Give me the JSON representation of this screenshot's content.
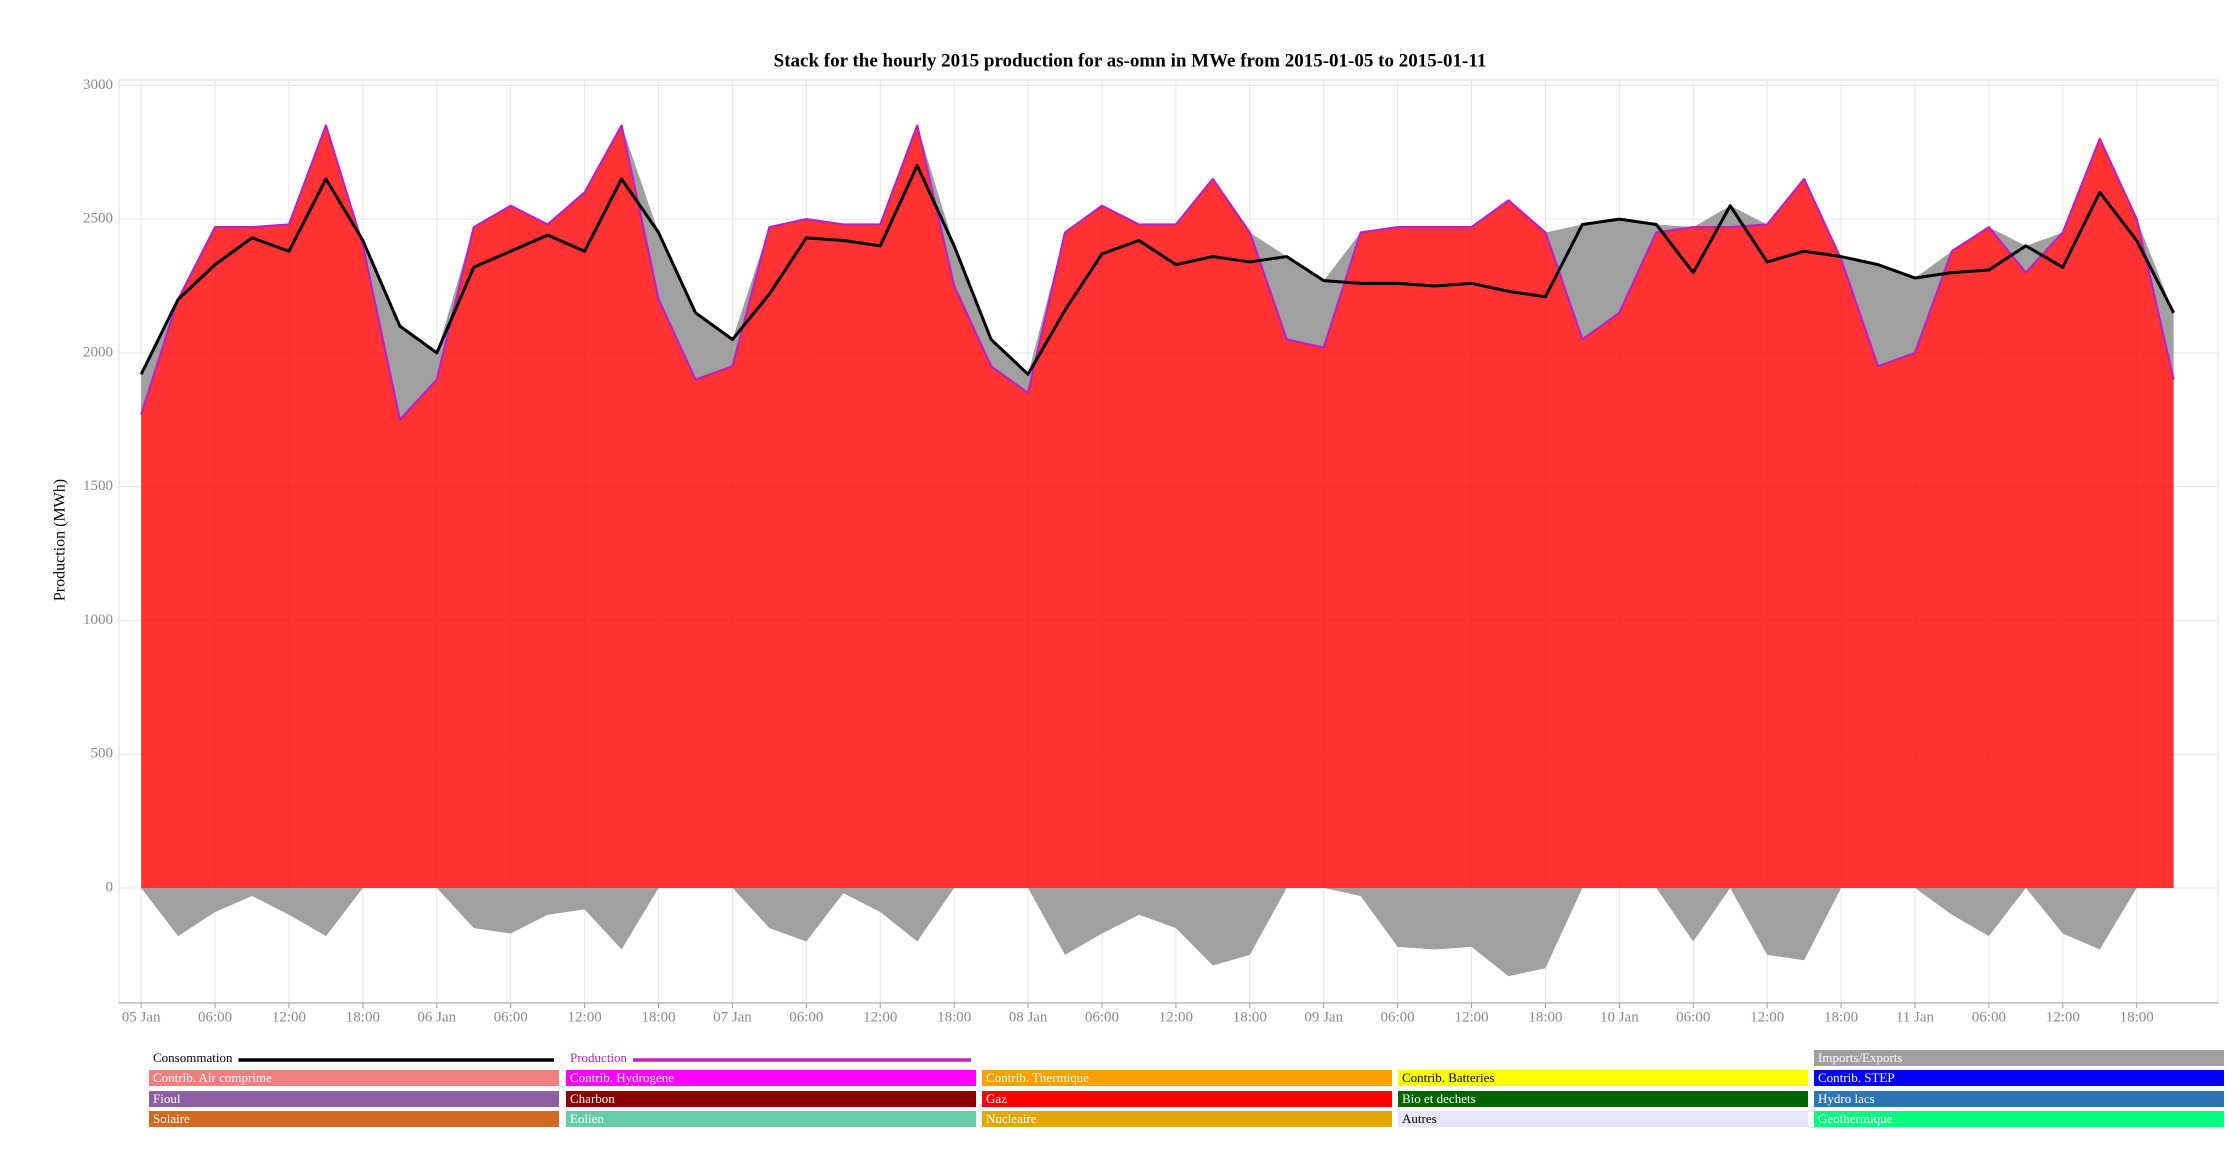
{
  "chart_data": {
    "type": "stacked-area",
    "title": "Stack for the hourly 2015 production for as-omn in MWe from 2015-01-05 to 2015-01-11",
    "y_label": "Production (MWh)",
    "x": [
      0,
      3,
      6,
      9,
      12,
      15,
      18,
      21,
      24,
      27,
      30,
      33,
      36,
      39,
      42,
      45,
      48,
      51,
      54,
      57,
      60,
      63,
      66,
      69,
      72,
      75,
      78,
      81,
      84,
      87,
      90,
      93,
      96,
      99,
      102,
      105,
      108,
      111,
      114,
      117,
      120,
      123,
      126,
      129,
      132,
      135,
      138,
      141,
      144,
      147,
      150,
      153,
      156,
      159,
      162,
      165
    ],
    "xlim": [
      -1.8,
      168.6
    ],
    "xticks": [
      {
        "value": 0,
        "label": "05 Jan"
      },
      {
        "value": 6,
        "label": "06:00"
      },
      {
        "value": 12,
        "label": "12:00"
      },
      {
        "value": 18,
        "label": "18:00"
      },
      {
        "value": 24,
        "label": "06 Jan"
      },
      {
        "value": 30,
        "label": "06:00"
      },
      {
        "value": 36,
        "label": "12:00"
      },
      {
        "value": 42,
        "label": "18:00"
      },
      {
        "value": 48,
        "label": "07 Jan"
      },
      {
        "value": 54,
        "label": "06:00"
      },
      {
        "value": 60,
        "label": "12:00"
      },
      {
        "value": 66,
        "label": "18:00"
      },
      {
        "value": 72,
        "label": "08 Jan"
      },
      {
        "value": 78,
        "label": "06:00"
      },
      {
        "value": 84,
        "label": "12:00"
      },
      {
        "value": 90,
        "label": "18:00"
      },
      {
        "value": 96,
        "label": "09 Jan"
      },
      {
        "value": 102,
        "label": "06:00"
      },
      {
        "value": 108,
        "label": "12:00"
      },
      {
        "value": 114,
        "label": "18:00"
      },
      {
        "value": 120,
        "label": "10 Jan"
      },
      {
        "value": 126,
        "label": "06:00"
      },
      {
        "value": 132,
        "label": "12:00"
      },
      {
        "value": 138,
        "label": "18:00"
      },
      {
        "value": 144,
        "label": "11 Jan"
      },
      {
        "value": 150,
        "label": "06:00"
      },
      {
        "value": 156,
        "label": "12:00"
      },
      {
        "value": 162,
        "label": "18:00"
      }
    ],
    "ylim": [
      -430,
      3020
    ],
    "yticks": [
      0,
      500,
      1000,
      1500,
      2000,
      2500,
      3000
    ],
    "grid": true,
    "series": [
      {
        "name": "Consommation",
        "kind": "line",
        "color": "#000000",
        "values": [
          1920,
          2200,
          2330,
          2430,
          2380,
          2650,
          2420,
          2100,
          2000,
          2320,
          2380,
          2440,
          2380,
          2650,
          2450,
          2150,
          2050,
          2220,
          2430,
          2420,
          2400,
          2700,
          2400,
          2050,
          1920,
          2160,
          2370,
          2420,
          2330,
          2360,
          2340,
          2360,
          2270,
          2260,
          2260,
          2250,
          2260,
          2230,
          2210,
          2480,
          2500,
          2480,
          2300,
          2550,
          2340,
          2380,
          2360,
          2330,
          2280,
          2300,
          2310,
          2400,
          2320,
          2600,
          2420,
          2150
        ]
      },
      {
        "name": "Production",
        "kind": "line",
        "color": "#c020c0",
        "values": [
          1770,
          2200,
          2470,
          2470,
          2480,
          2850,
          2400,
          1750,
          1900,
          2470,
          2550,
          2480,
          2600,
          2850,
          2200,
          1900,
          1950,
          2470,
          2500,
          2480,
          2480,
          2850,
          2250,
          1950,
          1850,
          2450,
          2550,
          2480,
          2480,
          2650,
          2450,
          2050,
          2020,
          2450,
          2470,
          2470,
          2470,
          2570,
          2450,
          2050,
          2150,
          2450,
          2470,
          2470,
          2480,
          2650,
          2350,
          1950,
          2000,
          2380,
          2470,
          2300,
          2450,
          2800,
          2500,
          1900
        ]
      },
      {
        "name": "Gaz",
        "kind": "area",
        "color": "#ff0000",
        "values": [
          1770,
          2200,
          2470,
          2470,
          2480,
          2850,
          2400,
          1750,
          1900,
          2470,
          2550,
          2480,
          2600,
          2850,
          2200,
          1900,
          1950,
          2470,
          2500,
          2480,
          2480,
          2850,
          2250,
          1950,
          1850,
          2450,
          2550,
          2480,
          2480,
          2650,
          2450,
          2050,
          2020,
          2450,
          2470,
          2470,
          2470,
          2570,
          2450,
          2050,
          2150,
          2450,
          2470,
          2470,
          2480,
          2650,
          2350,
          1950,
          2000,
          2380,
          2470,
          2300,
          2450,
          2800,
          2500,
          1900
        ]
      },
      {
        "name": "Imports/Exports",
        "kind": "area",
        "color": "#a0a0a0",
        "values": [
          150,
          -180,
          -90,
          -30,
          -100,
          -180,
          20,
          350,
          100,
          -150,
          -170,
          -100,
          -80,
          -230,
          250,
          250,
          100,
          -150,
          -200,
          -20,
          -90,
          -200,
          150,
          100,
          70,
          -250,
          -170,
          -100,
          -150,
          -290,
          -250,
          310,
          250,
          -30,
          -220,
          -230,
          -220,
          -330,
          -300,
          430,
          350,
          30,
          -200,
          80,
          -250,
          -270,
          10,
          380,
          280,
          -100,
          -180,
          100,
          -170,
          -230,
          0,
          250
        ]
      }
    ],
    "legend_only": [
      {
        "name": "Contrib. Air comprime",
        "color": "#f08080"
      },
      {
        "name": "Contrib. Hydrogene",
        "color": "#ff00ff"
      },
      {
        "name": "Contrib. Thermique",
        "color": "#f7a000"
      },
      {
        "name": "Contrib. Batteries",
        "color": "#ffff00"
      },
      {
        "name": "Contrib. STEP",
        "color": "#0000ff"
      },
      {
        "name": "Fioul",
        "color": "#8e5ea2"
      },
      {
        "name": "Charbon",
        "color": "#8b0000"
      },
      {
        "name": "Bio et dechets",
        "color": "#006400"
      },
      {
        "name": "Hydro lacs",
        "color": "#2e75b6"
      },
      {
        "name": "Solaire",
        "color": "#d2691e"
      },
      {
        "name": "Eolien",
        "color": "#66cdaa"
      },
      {
        "name": "Nucleaire",
        "color": "#e0a800"
      },
      {
        "name": "Autres",
        "color": "#e6e6fa"
      },
      {
        "name": "Geothermique",
        "color": "#00ff7f"
      }
    ]
  }
}
